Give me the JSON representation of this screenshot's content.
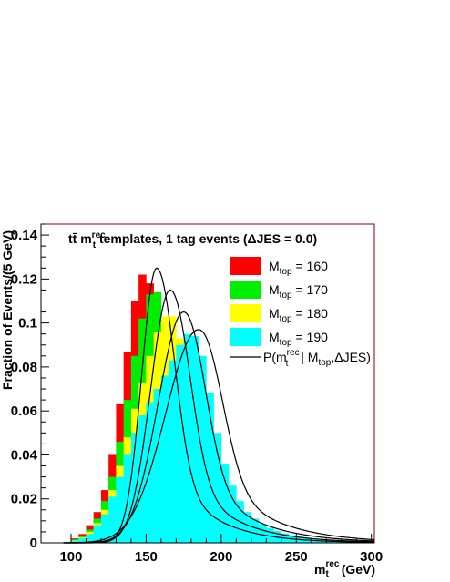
{
  "chart_data": {
    "type": "histogram",
    "title": "tt̄ m_t^rec templates, 1 tag events (ΔJES = 0.0)",
    "title_parts": {
      "main": "tt̄ m",
      "sub": "t",
      "sup": "rec",
      "rest": " templates, 1 tag events (ΔJES =  0.0)"
    },
    "xlabel": "m_t^rec (GeV)",
    "xlabel_parts": {
      "main": "m",
      "sub": "t",
      "sup": "rec",
      "rest": " (GeV)"
    },
    "ylabel": "Fraction of Events/(5 GeV)",
    "xlim": [
      80,
      302
    ],
    "ylim": [
      0,
      0.145
    ],
    "x_ticks": [
      100,
      150,
      200,
      250,
      300
    ],
    "y_ticks": [
      0,
      0.02,
      0.04,
      0.06,
      0.08,
      0.1,
      0.12,
      0.14
    ],
    "y_tick_labels": [
      "0",
      "0.02",
      "0.04",
      "0.06",
      "0.08",
      "0.1",
      "0.12",
      "0.14"
    ],
    "bin_width": 5,
    "bin_start": 90,
    "series": [
      {
        "label": "M_top = 160",
        "legend_main": "M",
        "legend_sub": "top",
        "legend_value": " =  160",
        "color": "#ff0000",
        "peak": 157,
        "peak_value": 0.122,
        "values": [
          0,
          0,
          0.002,
          0.004,
          0.008,
          0.014,
          0.024,
          0.04,
          0.063,
          0.087,
          0.11,
          0.122,
          0.118,
          0.102,
          0.079,
          0.056,
          0.04,
          0.03,
          0.024,
          0.019,
          0.016,
          0.013,
          0.011,
          0.009,
          0.0075,
          0.006,
          0.005,
          0.004,
          0.0032,
          0.0025,
          0.002,
          0.0015,
          0.0012,
          0.0008,
          0,
          0,
          0,
          0,
          0,
          0,
          0,
          0,
          0
        ]
      },
      {
        "label": "M_top = 170",
        "legend_main": "M",
        "legend_sub": "top",
        "legend_value": " =  170",
        "color": "#00ee00",
        "peak": 166,
        "peak_value": 0.114,
        "values": [
          0,
          0,
          0.0015,
          0.003,
          0.006,
          0.011,
          0.019,
          0.03,
          0.046,
          0.065,
          0.085,
          0.102,
          0.113,
          0.114,
          0.101,
          0.08,
          0.059,
          0.043,
          0.032,
          0.025,
          0.02,
          0.016,
          0.013,
          0.011,
          0.009,
          0.0075,
          0.006,
          0.005,
          0.004,
          0.0032,
          0.0025,
          0.002,
          0.0015,
          0.001,
          0,
          0,
          0,
          0,
          0,
          0,
          0,
          0,
          0
        ]
      },
      {
        "label": "M_top = 180",
        "legend_main": "M",
        "legend_sub": "top",
        "legend_value": " =  180",
        "color": "#ffff00",
        "peak": 175,
        "peak_value": 0.104,
        "values": [
          0,
          0,
          0.0012,
          0.0025,
          0.005,
          0.009,
          0.015,
          0.024,
          0.035,
          0.048,
          0.061,
          0.073,
          0.085,
          0.096,
          0.103,
          0.103,
          0.093,
          0.074,
          0.055,
          0.041,
          0.031,
          0.024,
          0.019,
          0.015,
          0.012,
          0.0095,
          0.0075,
          0.006,
          0.0048,
          0.0038,
          0.003,
          0.0022,
          0.0016,
          0.0011,
          0.0006,
          0,
          0,
          0,
          0,
          0,
          0,
          0,
          0
        ]
      },
      {
        "label": "M_top = 190",
        "legend_main": "M",
        "legend_sub": "top",
        "legend_value": " =  190",
        "color": "#00ffff",
        "peak": 185,
        "peak_value": 0.096,
        "values": [
          0,
          0,
          0.001,
          0.002,
          0.004,
          0.008,
          0.013,
          0.021,
          0.03,
          0.04,
          0.05,
          0.058,
          0.064,
          0.07,
          0.076,
          0.083,
          0.09,
          0.095,
          0.094,
          0.085,
          0.068,
          0.05,
          0.036,
          0.026,
          0.019,
          0.014,
          0.011,
          0.0085,
          0.0068,
          0.0054,
          0.0043,
          0.0034,
          0.0027,
          0.0021,
          0.0016,
          0.0012,
          0.0009,
          0.0006,
          0.0004,
          0.0003,
          0.0002,
          0.0001,
          0
        ]
      }
    ],
    "curves": [
      {
        "peak": 157,
        "height": 0.125,
        "sigma_left": 10,
        "sigma_right": 11,
        "tail": 0.045,
        "tail_decay": 28
      },
      {
        "peak": 166,
        "height": 0.115,
        "sigma_left": 13,
        "sigma_right": 12,
        "tail": 0.045,
        "tail_decay": 30
      },
      {
        "peak": 175,
        "height": 0.105,
        "sigma_left": 17,
        "sigma_right": 13,
        "tail": 0.045,
        "tail_decay": 32
      },
      {
        "peak": 185,
        "height": 0.097,
        "sigma_left": 22,
        "sigma_right": 14,
        "tail": 0.045,
        "tail_decay": 34
      }
    ],
    "curve_legend": {
      "main": "P(m",
      "sub": "t",
      "sup": "rec",
      "mid": " | M",
      "sub2": "top",
      "rest": ",ΔJES)"
    },
    "legend_position": "top-right",
    "grid": false
  }
}
